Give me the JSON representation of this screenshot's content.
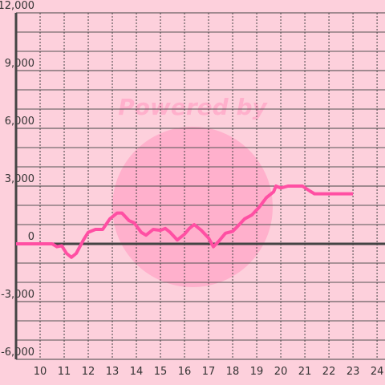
{
  "chart_data": {
    "type": "line",
    "watermark": "Powered by",
    "x": [
      9,
      10.5,
      10.7,
      10.9,
      11.1,
      11.3,
      11.5,
      11.8,
      12,
      12.3,
      12.6,
      12.9,
      13.2,
      13.4,
      13.7,
      13.9,
      14.2,
      14.4,
      14.7,
      15,
      15.2,
      15.4,
      15.7,
      16,
      16.2,
      16.4,
      16.7,
      17,
      17.2,
      17.4,
      17.7,
      18,
      18.2,
      18.5,
      18.8,
      19.1,
      19.4,
      19.7,
      19.8,
      20,
      20.3,
      20.9,
      21.2,
      21.4,
      23
    ],
    "series": [
      {
        "color": "#ff4fa3",
        "values": [
          0,
          0,
          -150,
          -100,
          -500,
          -700,
          -500,
          200,
          600,
          750,
          750,
          1300,
          1600,
          1600,
          1200,
          1100,
          600,
          450,
          750,
          700,
          800,
          600,
          200,
          500,
          800,
          1000,
          700,
          300,
          -150,
          100,
          550,
          650,
          900,
          1300,
          1500,
          1900,
          2400,
          2700,
          3000,
          2900,
          3000,
          3000,
          2750,
          2600,
          2600
        ]
      }
    ],
    "xlim": [
      9,
      24.33
    ],
    "xticks": [
      10,
      11,
      12,
      13,
      14,
      15,
      16,
      17,
      18,
      19,
      20,
      21,
      22,
      23,
      24
    ],
    "ylim": [
      -6000,
      12000
    ],
    "yticks": [
      {
        "value": -6000,
        "label": "-6,000"
      },
      {
        "value": -3000,
        "label": "-3,000"
      },
      0,
      {
        "value": 3000,
        "label": "3,000"
      },
      {
        "value": 6000,
        "label": "6,000"
      },
      {
        "value": 9000,
        "label": "9,000"
      },
      {
        "value": 12000,
        "label": "12,000"
      }
    ],
    "minor_yticks": [
      -5000,
      -4000,
      -2000,
      -1000,
      1000,
      2000,
      4000,
      5000,
      7000,
      8000,
      10000,
      11000
    ],
    "grid": true
  }
}
